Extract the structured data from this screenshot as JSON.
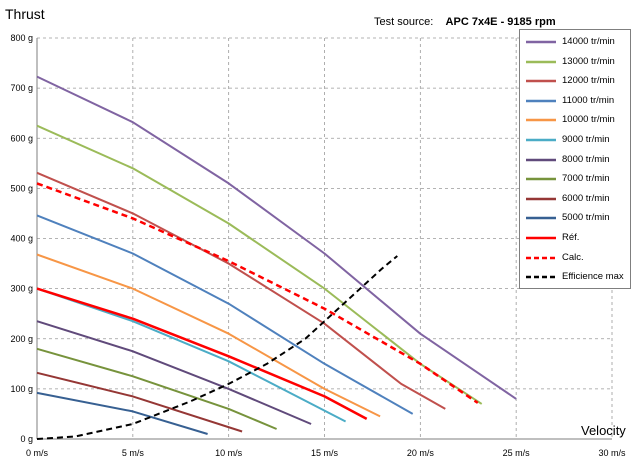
{
  "chart_data": {
    "type": "line",
    "ylabel": "Thrust",
    "xlabel": "Velocity",
    "source_label": "Test source:",
    "source_value": "APC 7x4E  -  9185  rpm",
    "xlim": [
      0,
      30
    ],
    "ylim": [
      0,
      800
    ],
    "x_ticks": [
      "0 m/s",
      "5 m/s",
      "10 m/s",
      "15 m/s",
      "20 m/s",
      "25 m/s",
      "30 m/s"
    ],
    "y_ticks": [
      "0 g",
      "100 g",
      "200 g",
      "300 g",
      "400 g",
      "500 g",
      "600 g",
      "700 g",
      "800 g"
    ],
    "grid": "dashed",
    "legend_position": "top-right",
    "series": [
      {
        "name": "14000 tr/min",
        "color": "#8064a2",
        "dash": "solid",
        "x": [
          0,
          5,
          10,
          15,
          20,
          25
        ],
        "y": [
          723,
          632,
          510,
          370,
          210,
          80
        ]
      },
      {
        "name": "13000 tr/min",
        "color": "#9bbb59",
        "dash": "solid",
        "x": [
          0,
          5,
          10,
          15,
          20,
          23.2
        ],
        "y": [
          625,
          540,
          430,
          300,
          150,
          70
        ]
      },
      {
        "name": "12000 tr/min",
        "color": "#c0504d",
        "dash": "solid",
        "x": [
          0,
          5,
          10,
          15,
          19,
          21.3
        ],
        "y": [
          531,
          450,
          350,
          230,
          110,
          60
        ]
      },
      {
        "name": "11000 tr/min",
        "color": "#4f81bd",
        "dash": "solid",
        "x": [
          0,
          5,
          10,
          15,
          19.6
        ],
        "y": [
          446,
          370,
          270,
          150,
          50
        ]
      },
      {
        "name": "10000 tr/min",
        "color": "#f79646",
        "dash": "solid",
        "x": [
          0,
          5,
          10,
          15,
          17.9
        ],
        "y": [
          368,
          300,
          210,
          100,
          45
        ]
      },
      {
        "name": "9000 tr/min",
        "color": "#4bacc6",
        "dash": "solid",
        "x": [
          0,
          5,
          10,
          16.1
        ],
        "y": [
          300,
          235,
          155,
          35
        ]
      },
      {
        "name": "8000 tr/min",
        "color": "#604a7b",
        "dash": "solid",
        "x": [
          0,
          5,
          10,
          14.3
        ],
        "y": [
          235,
          175,
          100,
          30
        ]
      },
      {
        "name": "7000 tr/min",
        "color": "#77933c",
        "dash": "solid",
        "x": [
          0,
          5,
          10,
          12.5
        ],
        "y": [
          180,
          125,
          60,
          20
        ]
      },
      {
        "name": "6000 tr/min",
        "color": "#953735",
        "dash": "solid",
        "x": [
          0,
          5,
          10.7
        ],
        "y": [
          132,
          85,
          15
        ]
      },
      {
        "name": "5000 tr/min",
        "color": "#376092",
        "dash": "solid",
        "x": [
          0,
          5,
          8.9
        ],
        "y": [
          92,
          55,
          10
        ]
      },
      {
        "name": "Réf.",
        "color": "#ff0000",
        "dash": "solid",
        "x": [
          0,
          5,
          10,
          15,
          17.2
        ],
        "y": [
          300,
          240,
          165,
          85,
          40
        ]
      },
      {
        "name": "Calc.",
        "color": "#ff0000",
        "dash": "dashed",
        "x": [
          0,
          5,
          10,
          15,
          20,
          23
        ],
        "y": [
          510,
          440,
          355,
          260,
          150,
          72
        ]
      },
      {
        "name": "Efficience max",
        "color": "#000000",
        "dash": "dashed",
        "x": [
          0,
          2,
          5,
          8,
          10,
          12,
          14,
          16,
          18,
          18.8
        ],
        "y": [
          0,
          5,
          30,
          75,
          110,
          150,
          200,
          270,
          340,
          365
        ]
      }
    ]
  }
}
